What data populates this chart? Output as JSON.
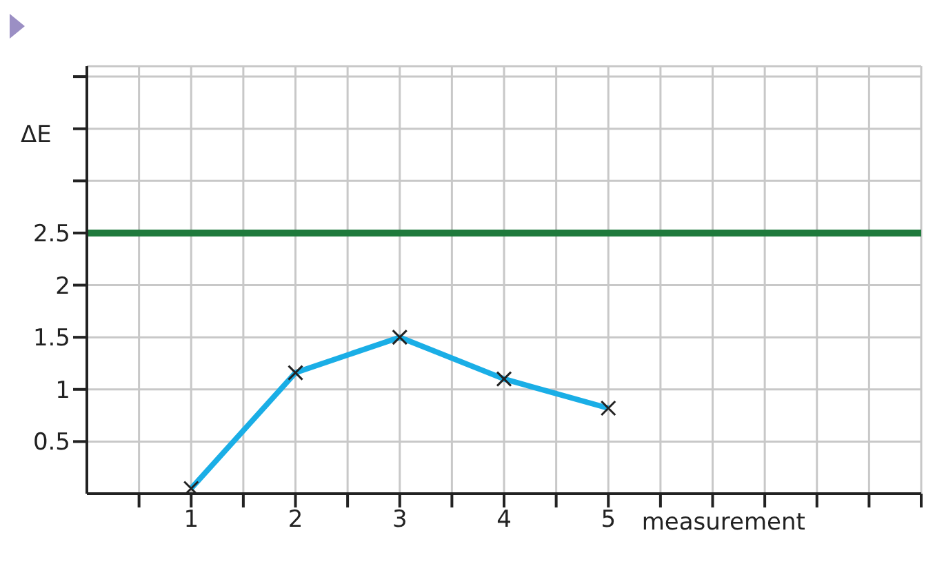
{
  "chart_data": {
    "type": "line",
    "ylabel": "ΔE",
    "xlabel": "measurement",
    "x": [
      1,
      2,
      3,
      4,
      5
    ],
    "series": [
      {
        "color": "#1aaee6",
        "values": [
          0.05,
          1.16,
          1.5,
          1.1,
          0.82
        ]
      }
    ],
    "xlim": [
      0,
      8
    ],
    "xticks": [
      {
        "value": 0.5,
        "label": null
      },
      1,
      {
        "value": 1.5,
        "label": null
      },
      2,
      {
        "value": 2.5,
        "label": null
      },
      3,
      {
        "value": 3.5,
        "label": null
      },
      4,
      {
        "value": 4.5,
        "label": null
      },
      5,
      {
        "value": 5.5,
        "label": null
      },
      {
        "value": 6,
        "label": null
      },
      {
        "value": 6.5,
        "label": null
      },
      {
        "value": 7,
        "label": null
      },
      {
        "value": 7.5,
        "label": null
      },
      {
        "value": 8,
        "label": null
      }
    ],
    "ylim": [
      0,
      4.1
    ],
    "yticks": [
      0.5,
      1,
      1.5,
      2,
      2.5,
      {
        "value": 3,
        "label": null
      },
      {
        "value": 3.5,
        "label": null
      },
      {
        "value": 4,
        "label": null
      }
    ],
    "ref_lines": [
      {
        "axis": "y",
        "value": 2.5,
        "color": "#1f7a3c"
      }
    ],
    "grid": true,
    "marker": "cross",
    "line_style": "solid"
  }
}
